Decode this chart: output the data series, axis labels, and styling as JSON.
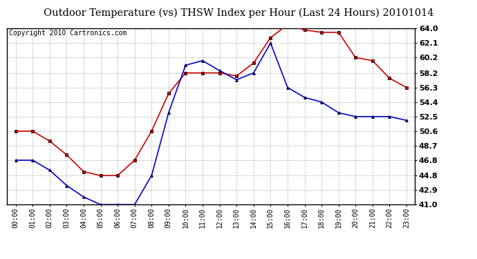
{
  "title": "Outdoor Temperature (vs) THSW Index per Hour (Last 24 Hours) 20101014",
  "copyright_text": "Copyright 2010 Cartronics.com",
  "x_labels": [
    "00:00",
    "01:00",
    "02:00",
    "03:00",
    "04:00",
    "05:00",
    "06:00",
    "07:00",
    "08:00",
    "09:00",
    "10:00",
    "11:00",
    "12:00",
    "13:00",
    "14:00",
    "15:00",
    "16:00",
    "17:00",
    "18:00",
    "19:00",
    "20:00",
    "21:00",
    "22:00",
    "23:00"
  ],
  "red_data": [
    50.6,
    50.6,
    49.3,
    47.5,
    45.3,
    44.8,
    44.8,
    46.8,
    50.6,
    55.5,
    58.2,
    58.2,
    58.2,
    57.8,
    59.5,
    62.8,
    64.5,
    63.8,
    63.5,
    63.5,
    60.2,
    59.8,
    57.5,
    56.3
  ],
  "blue_data": [
    46.8,
    46.8,
    45.5,
    43.5,
    42.0,
    41.0,
    41.0,
    41.0,
    44.8,
    53.0,
    59.2,
    59.8,
    58.5,
    57.3,
    58.2,
    62.1,
    56.3,
    55.0,
    54.4,
    53.0,
    52.5,
    52.5,
    52.5,
    52.0
  ],
  "y_ticks": [
    41.0,
    42.9,
    44.8,
    46.8,
    48.7,
    50.6,
    52.5,
    54.4,
    56.3,
    58.2,
    60.2,
    62.1,
    64.0
  ],
  "y_min": 41.0,
  "y_max": 64.0,
  "red_color": "#cc0000",
  "blue_color": "#0000cc",
  "background_color": "#ffffff",
  "grid_color": "#aaaaaa",
  "title_fontsize": 10.5,
  "copyright_fontsize": 7,
  "tick_fontsize": 8,
  "xtick_fontsize": 7
}
